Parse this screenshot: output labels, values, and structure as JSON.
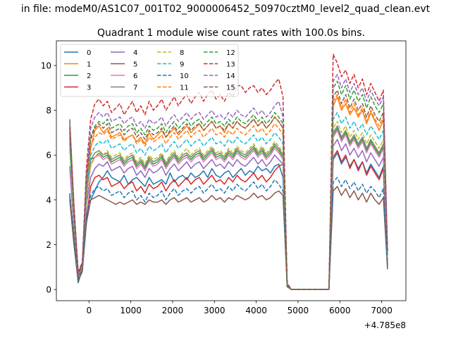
{
  "chart_data": {
    "type": "line",
    "suptitle": "in file: modeM0/AS1C07_001T02_9000006452_50970cztM0_level2_quad_clean.evt",
    "title": "Quadrant 1 module wise count rates with 100.0s bins.",
    "xlabel": "",
    "ylabel": "",
    "x_offset_label": "+4.785e8",
    "xlim": [
      -780,
      7580
    ],
    "ylim": [
      -0.5,
      11.1
    ],
    "xticks": [
      0,
      1000,
      2000,
      3000,
      4000,
      5000,
      6000,
      7000
    ],
    "yticks": [
      0,
      2,
      4,
      6,
      8,
      10
    ],
    "xtick_labels": [
      "0",
      "1000",
      "2000",
      "3000",
      "4000",
      "5000",
      "6000",
      "7000"
    ],
    "ytick_labels": [
      "0",
      "2",
      "4",
      "6",
      "8",
      "10"
    ],
    "grid": false,
    "legend_placement": "top-left",
    "legend_columns": 4,
    "x": [
      -460,
      -360,
      -260,
      -160,
      -60,
      40,
      140,
      240,
      340,
      440,
      540,
      640,
      740,
      840,
      940,
      1040,
      1140,
      1240,
      1340,
      1440,
      1540,
      1640,
      1740,
      1840,
      1940,
      2040,
      2140,
      2240,
      2340,
      2440,
      2540,
      2640,
      2740,
      2840,
      2940,
      3040,
      3140,
      3240,
      3340,
      3440,
      3540,
      3640,
      3740,
      3840,
      3940,
      4040,
      4140,
      4240,
      4340,
      4440,
      4540,
      4640,
      4740,
      4840,
      5740,
      5840,
      5940,
      6040,
      6140,
      6240,
      6340,
      6440,
      6540,
      6640,
      6740,
      6840,
      6940,
      7040,
      7140
    ],
    "series": [
      {
        "name": "0",
        "color": "#1f77b4",
        "dash": false,
        "values": [
          4.1,
          2.2,
          0.3,
          0.9,
          3,
          4,
          4.4,
          4.8,
          5,
          5.3,
          5,
          4.9,
          4.8,
          5.1,
          4.7,
          4.9,
          5,
          4.8,
          4.6,
          5,
          4.7,
          4.8,
          4.9,
          4.7,
          5.2,
          4.8,
          5,
          5.1,
          4.9,
          5.2,
          5,
          5.1,
          5.3,
          5,
          5.4,
          5.1,
          5,
          5.2,
          5.3,
          5,
          5.2,
          5.4,
          5.1,
          5.3,
          5.2,
          5.5,
          5.3,
          5.4,
          5.2,
          5.5,
          5.6,
          5,
          0.15,
          0,
          0,
          5.8,
          6.1,
          5.6,
          5.9,
          5.5,
          5.8,
          5.4,
          5.7,
          5.2,
          5.6,
          5.3,
          5,
          5.5,
          1
        ]
      },
      {
        "name": "1",
        "color": "#ff7f0e",
        "dash": false,
        "values": [
          7.5,
          3.8,
          0.7,
          1.1,
          4.5,
          6.3,
          7.1,
          7.3,
          7,
          7.2,
          6.8,
          6.9,
          7,
          6.7,
          6.8,
          6.9,
          6.6,
          6.8,
          6.5,
          7,
          6.7,
          6.9,
          7.1,
          6.8,
          7,
          7.2,
          6.9,
          7.1,
          7.3,
          7,
          7.2,
          7.4,
          7.1,
          7.3,
          7.5,
          7.2,
          7.3,
          7,
          7.4,
          7.2,
          7.5,
          7.3,
          7.2,
          7.4,
          7.6,
          7.3,
          7.5,
          7.2,
          7.4,
          7.7,
          7.5,
          7.2,
          0.25,
          0,
          0,
          8.2,
          8.6,
          8,
          8.3,
          7.8,
          8.1,
          7.7,
          8,
          7.4,
          7.9,
          7.5,
          7.1,
          7.6,
          1.6
        ]
      },
      {
        "name": "2",
        "color": "#2ca02c",
        "dash": false,
        "values": [
          7.6,
          3.5,
          0.6,
          1,
          4,
          5.8,
          5.9,
          6.1,
          5.9,
          6,
          5.7,
          5.8,
          5.9,
          5.6,
          5.8,
          5.9,
          5.5,
          5.7,
          5.4,
          5.8,
          5.6,
          5.7,
          5.9,
          5.5,
          5.8,
          6,
          5.7,
          5.9,
          6,
          5.8,
          6,
          6.1,
          5.8,
          6,
          6.2,
          5.9,
          6,
          5.8,
          6.1,
          5.9,
          6.2,
          6,
          5.9,
          6.1,
          6.3,
          6,
          6.2,
          5.9,
          6.1,
          6.4,
          6.2,
          5.9,
          0.2,
          0,
          0,
          6.9,
          7.2,
          6.7,
          7,
          6.5,
          6.8,
          6.4,
          6.7,
          6.2,
          6.6,
          6.3,
          6,
          6.4,
          1.3
        ]
      },
      {
        "name": "3",
        "color": "#d62728",
        "dash": false,
        "values": [
          4.2,
          2.1,
          0.4,
          0.8,
          3.2,
          4.6,
          5,
          5.1,
          4.9,
          5,
          4.6,
          4.7,
          4.8,
          4.5,
          4.7,
          4.8,
          4.4,
          4.6,
          4.3,
          4.7,
          4.5,
          4.6,
          4.8,
          4.4,
          4.7,
          4.9,
          4.6,
          4.8,
          5,
          4.7,
          4.9,
          5,
          4.7,
          4.9,
          5.1,
          4.8,
          4.9,
          4.7,
          5,
          4.8,
          5.1,
          4.9,
          4.8,
          5,
          5.2,
          4.9,
          5.1,
          4.8,
          5,
          5.3,
          5.5,
          5.6,
          0.15,
          0,
          0,
          5.9,
          6.2,
          5.7,
          6,
          5.4,
          5.8,
          5.3,
          5.7,
          5.1,
          5.5,
          5.2,
          4.9,
          5.4,
          1.1
        ]
      },
      {
        "name": "4",
        "color": "#9467bd",
        "dash": false,
        "values": [
          5.5,
          2.7,
          0.5,
          0.9,
          3.8,
          5,
          5.4,
          5.6,
          5.5,
          5.7,
          5.3,
          5.4,
          5.5,
          5.2,
          5.4,
          5.5,
          5.1,
          5.3,
          5,
          5.4,
          5.2,
          5.3,
          5.5,
          5.1,
          5.4,
          5.6,
          5.3,
          5.5,
          5.7,
          5.4,
          5.6,
          5.7,
          5.4,
          5.6,
          5.8,
          5.5,
          5.6,
          5.4,
          5.7,
          5.5,
          5.8,
          5.6,
          5.5,
          5.7,
          5.9,
          5.6,
          5.8,
          5.5,
          5.7,
          6,
          5.8,
          5.6,
          0.18,
          0,
          0,
          6.4,
          6.7,
          6.2,
          6.5,
          6,
          6.3,
          5.9,
          6.2,
          5.7,
          6.1,
          5.8,
          5.5,
          5.9,
          1.2
        ]
      },
      {
        "name": "5",
        "color": "#8c564b",
        "dash": false,
        "values": [
          4,
          2,
          0.4,
          0.8,
          3,
          4,
          4.1,
          4.2,
          4.1,
          4,
          3.9,
          3.8,
          3.9,
          3.8,
          3.9,
          4,
          3.8,
          3.9,
          3.8,
          4,
          3.9,
          3.9,
          4,
          3.8,
          4,
          4.1,
          3.9,
          4,
          4.1,
          3.9,
          4,
          4.1,
          3.9,
          4,
          4.2,
          4,
          4.1,
          3.9,
          4.1,
          4,
          4.2,
          4.1,
          4,
          4.1,
          4.3,
          4.1,
          4.2,
          4,
          4.1,
          4.3,
          4.4,
          4.2,
          0.12,
          0,
          0,
          4.4,
          4.6,
          4.2,
          4.5,
          4.1,
          4.4,
          4,
          4.3,
          3.9,
          4.3,
          4,
          3.8,
          4.1,
          0.9
        ]
      },
      {
        "name": "6",
        "color": "#e377c2",
        "dash": false,
        "values": [
          6.5,
          3.2,
          0.6,
          1,
          4.2,
          5.6,
          5.9,
          6,
          5.8,
          5.9,
          5.6,
          5.7,
          5.8,
          5.5,
          5.7,
          5.8,
          5.4,
          5.6,
          5.3,
          5.7,
          5.5,
          5.6,
          5.8,
          5.4,
          5.7,
          5.9,
          5.6,
          5.8,
          5.9,
          5.7,
          5.9,
          6,
          5.7,
          5.9,
          6.1,
          5.8,
          5.9,
          5.7,
          6,
          5.8,
          6.1,
          5.9,
          5.8,
          6,
          6.2,
          5.9,
          6.1,
          5.8,
          6,
          6.3,
          6.1,
          5.8,
          0.2,
          0,
          0,
          6.8,
          7.1,
          6.6,
          6.9,
          6.4,
          6.7,
          6.3,
          6.6,
          6.1,
          6.5,
          6.2,
          5.9,
          6.3,
          1.3
        ]
      },
      {
        "name": "7",
        "color": "#7f7f7f",
        "dash": false,
        "values": [
          6.8,
          3.3,
          0.6,
          1,
          4.4,
          5.8,
          6.1,
          6.2,
          6,
          6.1,
          5.8,
          5.9,
          6,
          5.7,
          5.9,
          6,
          5.6,
          5.8,
          5.5,
          5.9,
          5.7,
          5.8,
          6,
          5.6,
          5.9,
          6.1,
          5.8,
          6,
          6.1,
          5.9,
          6.1,
          6.2,
          5.9,
          6.1,
          6.3,
          6,
          6.1,
          5.9,
          6.2,
          6,
          6.3,
          6.1,
          6,
          6.2,
          6.4,
          6.1,
          6.3,
          6,
          6.2,
          6.5,
          6.3,
          6,
          0.2,
          0,
          0,
          7,
          7.3,
          6.8,
          7.1,
          6.6,
          6.9,
          6.5,
          6.8,
          6.3,
          6.7,
          6.4,
          6.1,
          6.5,
          1.4
        ]
      },
      {
        "name": "8",
        "color": "#bcbd22",
        "dash": true,
        "values": [
          6.2,
          3,
          0.5,
          1,
          4.1,
          5.5,
          5.9,
          6.1,
          6,
          6.2,
          5.9,
          6,
          6.1,
          5.8,
          6,
          6.1,
          5.7,
          5.9,
          5.6,
          6,
          5.8,
          5.9,
          6.1,
          5.7,
          6,
          6.2,
          5.9,
          6.1,
          6.3,
          6,
          6.2,
          6.3,
          6,
          6.2,
          6.4,
          6.1,
          6.2,
          6,
          6.3,
          6.1,
          6.4,
          6.2,
          6.1,
          6.3,
          6.5,
          6.2,
          6.4,
          6.1,
          6.3,
          6.6,
          6.4,
          6.1,
          0.2,
          0,
          0,
          7.2,
          7.5,
          7,
          7.3,
          6.8,
          7.1,
          6.7,
          7,
          6.5,
          6.9,
          6.6,
          6.3,
          6.7,
          1.4
        ]
      },
      {
        "name": "9",
        "color": "#17becf",
        "dash": true,
        "values": [
          6.6,
          3.3,
          0.6,
          1.1,
          4.5,
          6,
          6.4,
          6.6,
          6.5,
          6.7,
          6.3,
          6.4,
          6.5,
          6.2,
          6.4,
          6.5,
          6.1,
          6.3,
          6,
          6.4,
          6.2,
          6.3,
          6.5,
          6.1,
          6.4,
          6.6,
          6.3,
          6.5,
          6.7,
          6.4,
          6.6,
          6.7,
          6.4,
          6.6,
          6.8,
          6.5,
          6.6,
          6.4,
          6.7,
          6.5,
          6.8,
          6.6,
          6.5,
          6.7,
          6.9,
          6.6,
          6.8,
          6.5,
          6.7,
          7,
          6.8,
          6.5,
          0.22,
          0,
          0,
          7.6,
          7.9,
          7.4,
          7.7,
          7.2,
          7.5,
          7.1,
          7.4,
          6.9,
          7.3,
          7,
          6.7,
          7.1,
          1.5
        ]
      },
      {
        "name": "10",
        "color": "#1f77b4",
        "dash": true,
        "values": [
          4.3,
          2.3,
          0.5,
          0.9,
          3.3,
          4.2,
          4.5,
          4.6,
          4.4,
          4.5,
          4.2,
          4.3,
          4.4,
          4.1,
          4.3,
          4.4,
          4,
          4.2,
          3.9,
          4.3,
          4.1,
          4.2,
          4.4,
          4,
          4.3,
          4.5,
          4.2,
          4.4,
          4.5,
          4.3,
          4.5,
          4.6,
          4.3,
          4.5,
          4.7,
          4.4,
          4.5,
          4.3,
          4.6,
          4.4,
          4.7,
          4.5,
          4.4,
          4.6,
          4.8,
          4.5,
          4.7,
          4.4,
          4.6,
          4.9,
          4.7,
          4.4,
          0.14,
          0,
          0,
          4.8,
          5,
          4.6,
          4.9,
          4.5,
          4.8,
          4.4,
          4.7,
          4.3,
          4.6,
          4.4,
          4.1,
          4.5,
          1
        ]
      },
      {
        "name": "11",
        "color": "#ff7f0e",
        "dash": true,
        "values": [
          7.2,
          3.6,
          0.6,
          1.1,
          4.8,
          6.4,
          6.8,
          7,
          6.9,
          7.1,
          6.7,
          6.8,
          6.9,
          6.6,
          6.8,
          6.9,
          6.5,
          6.7,
          6.4,
          6.8,
          6.6,
          6.7,
          6.9,
          6.5,
          6.8,
          7,
          6.7,
          6.9,
          7.1,
          6.8,
          7,
          7.1,
          6.8,
          7,
          7.2,
          6.9,
          7,
          6.8,
          7.1,
          6.9,
          7.2,
          7,
          6.9,
          7.1,
          7.3,
          7,
          7.2,
          6.9,
          7.1,
          7.4,
          7.2,
          6.9,
          0.22,
          0,
          0,
          8.4,
          8.7,
          8.1,
          8.5,
          7.9,
          8.3,
          7.8,
          8.1,
          7.5,
          8,
          7.6,
          7.3,
          7.7,
          1.6
        ]
      },
      {
        "name": "12",
        "color": "#2ca02c",
        "dash": true,
        "values": [
          7,
          3.6,
          0.7,
          1.2,
          5,
          6.8,
          7.3,
          7.5,
          7.4,
          7.6,
          7.2,
          7.3,
          7.4,
          7.1,
          7.3,
          7.4,
          7,
          7.2,
          6.9,
          7.3,
          7.1,
          7.2,
          7.4,
          7,
          7.3,
          7.5,
          7.2,
          7.4,
          7.6,
          7.3,
          7.5,
          7.6,
          7.3,
          7.5,
          7.7,
          7.4,
          7.5,
          7.3,
          7.6,
          7.4,
          7.7,
          7.5,
          7.4,
          7.6,
          7.8,
          7.5,
          7.7,
          7.4,
          7.6,
          7.9,
          7.7,
          7.4,
          0.25,
          0,
          0,
          9,
          9.3,
          8.7,
          9.1,
          8.5,
          8.9,
          8.4,
          8.7,
          8.1,
          8.6,
          8.2,
          7.9,
          8.3,
          1.7
        ]
      },
      {
        "name": "13",
        "color": "#d62728",
        "dash": true,
        "values": [
          7.3,
          3.8,
          0.8,
          1.2,
          5.5,
          7.6,
          8.3,
          8.5,
          8.2,
          8.4,
          7.9,
          8.1,
          8.3,
          7.8,
          8.1,
          8.4,
          7.9,
          8.2,
          7.8,
          8.4,
          8,
          8.2,
          8.5,
          8,
          8.3,
          8.6,
          8.2,
          8.5,
          8.7,
          8.3,
          8.6,
          8.8,
          8.4,
          8.7,
          8.9,
          8.5,
          8.7,
          8.4,
          8.8,
          8.6,
          9.1,
          9.1,
          8.8,
          9,
          9.1,
          8.8,
          9,
          8.7,
          8.9,
          9.2,
          9.4,
          8.6,
          0.3,
          0,
          0,
          10.5,
          10.1,
          9.5,
          9.8,
          9.2,
          9.6,
          9,
          9.4,
          8.7,
          9.2,
          8.8,
          8.4,
          8.9,
          1.8
        ]
      },
      {
        "name": "14",
        "color": "#9467bd",
        "dash": true,
        "values": [
          7.4,
          3.6,
          0.7,
          1.1,
          5.2,
          7.2,
          7.7,
          7.9,
          7.7,
          7.9,
          7.5,
          7.6,
          7.7,
          7.4,
          7.6,
          7.7,
          7.3,
          7.5,
          7.2,
          7.6,
          7.4,
          7.5,
          7.7,
          7.3,
          7.6,
          7.8,
          7.5,
          7.7,
          7.9,
          7.6,
          7.8,
          7.9,
          7.6,
          7.8,
          8,
          7.7,
          7.8,
          7.6,
          7.9,
          7.7,
          8,
          7.8,
          7.7,
          7.9,
          8.1,
          7.8,
          8,
          7.7,
          7.9,
          8.2,
          8.4,
          7.7,
          0.26,
          0,
          0,
          9.3,
          9.6,
          9,
          9.4,
          8.8,
          9.2,
          8.7,
          9,
          8.4,
          8.9,
          8.5,
          8.2,
          8.6,
          1.7
        ]
      },
      {
        "name": "15",
        "color": "#8c564b",
        "dash": true,
        "values": [
          7.1,
          3.5,
          0.6,
          1.1,
          4.9,
          6.7,
          7.2,
          7.4,
          7.2,
          7.4,
          7,
          7.1,
          7.2,
          6.9,
          7.1,
          7.2,
          6.8,
          7,
          6.7,
          7.1,
          6.9,
          7,
          7.2,
          6.8,
          7.1,
          7.3,
          7,
          7.2,
          7.4,
          7.1,
          7.3,
          7.4,
          7.1,
          7.3,
          7.5,
          7.2,
          7.3,
          7.1,
          7.4,
          7.2,
          7.5,
          7.3,
          7.2,
          7.4,
          7.6,
          7.3,
          7.5,
          7.2,
          7.4,
          7.7,
          7.5,
          7.2,
          0.24,
          0,
          0,
          8.6,
          8.9,
          8.3,
          8.7,
          8.1,
          8.5,
          8,
          8.3,
          7.7,
          8.2,
          7.8,
          7.5,
          7.9,
          1.6
        ]
      }
    ]
  }
}
